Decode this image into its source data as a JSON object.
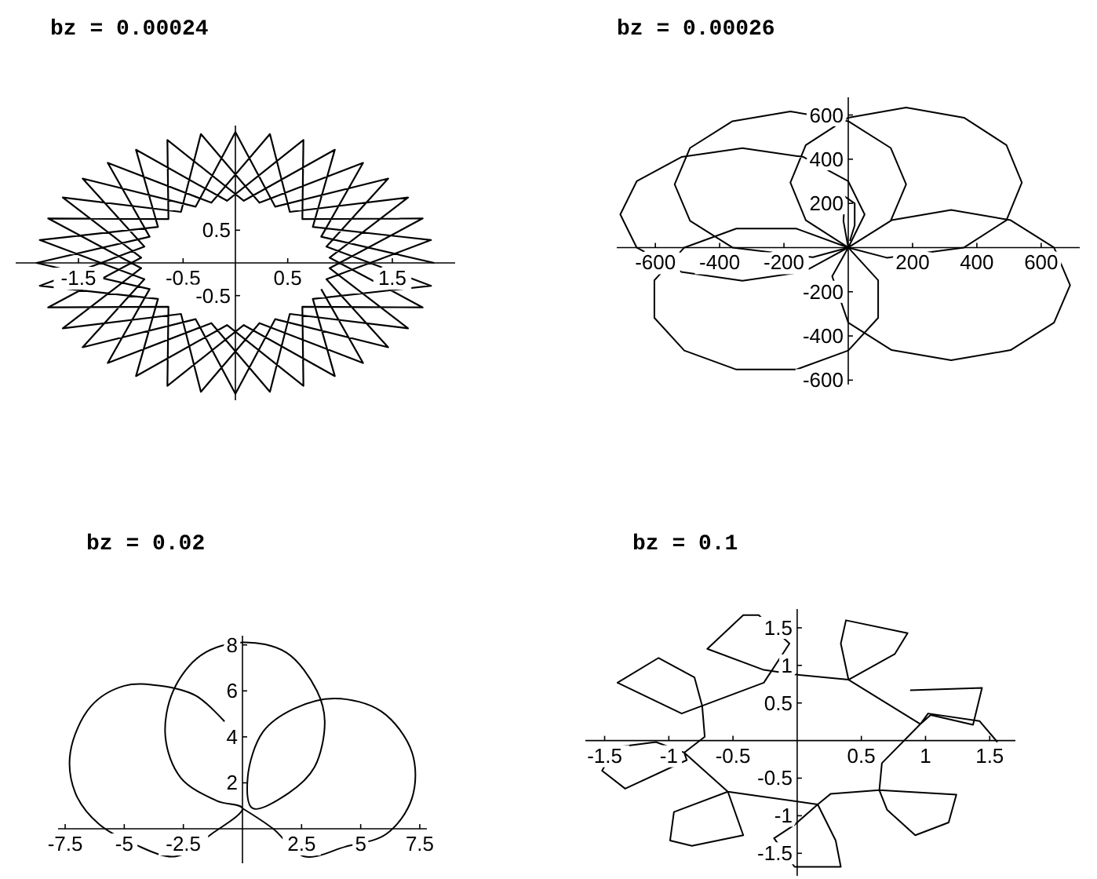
{
  "chart_data": [
    {
      "type": "line",
      "title": "bz = 0.00024",
      "xlim": [
        -2.1,
        2.1
      ],
      "ylim": [
        -2.1,
        2.1
      ],
      "xticks": [
        -1.5,
        -0.5,
        0.5,
        1.5
      ],
      "yticks": [
        -0.5,
        0.5
      ],
      "series": [
        {
          "color": "#000000",
          "x": [
            1.9,
            0.82,
            1.22,
            0.23,
            -0.33,
            -0.52,
            -1.65,
            -0.9,
            -1.79,
            -0.64,
            -0.65,
            0.08,
            0.95,
            0.74,
            1.87,
            0.87,
            1.46,
            0.38,
            0,
            -0.38,
            -1.46,
            -0.87,
            -1.87,
            -0.74,
            -0.95,
            -0.08,
            0.65,
            0.64,
            1.79,
            0.9,
            1.65,
            0.52,
            0.33,
            -0.23,
            -1.22,
            -0.82,
            -1.9,
            -0.82,
            -1.22,
            -0.23,
            0.33,
            0.52,
            1.65,
            0.9,
            1.79,
            0.64,
            0.65,
            -0.08,
            -0.95,
            -0.74,
            -1.87,
            -0.87,
            -1.46,
            -0.38,
            0,
            0.38,
            1.46,
            0.87,
            1.87,
            0.74,
            0.95,
            0.08,
            -0.65,
            -0.64,
            -1.79,
            -0.9,
            -1.65,
            -0.52,
            -0.33,
            0.23,
            1.22,
            0.82
          ],
          "values": [
            0,
            0.4,
            1.53,
            0.92,
            1.97,
            0.78,
            1.0,
            0.08,
            -0.68,
            -0.67,
            -1.88,
            -0.95,
            -1.73,
            -0.55,
            -0.35,
            0.25,
            1.29,
            0.86,
            2,
            0.86,
            1.29,
            0.25,
            -0.35,
            -0.55,
            -1.73,
            -0.95,
            -1.88,
            -0.67,
            -0.68,
            0.08,
            1.0,
            0.78,
            1.97,
            0.92,
            1.53,
            0.4,
            0,
            -0.4,
            -1.53,
            -0.92,
            -1.97,
            -0.78,
            -1.0,
            -0.08,
            0.68,
            0.67,
            1.88,
            0.95,
            1.73,
            0.55,
            0.35,
            -0.25,
            -1.29,
            -0.86,
            -2,
            -0.86,
            -1.29,
            -0.25,
            0.35,
            0.55,
            1.73,
            0.95,
            1.88,
            0.67,
            0.68,
            -0.08,
            -1.0,
            -0.78,
            -1.97,
            -0.92,
            -1.53,
            -0.4
          ]
        }
      ]
    },
    {
      "type": "line",
      "title": "bz = 0.00026",
      "xlim": [
        -720,
        720
      ],
      "ylim": [
        -620,
        680
      ],
      "xticks": [
        -600,
        -400,
        -200,
        200,
        400,
        600
      ],
      "yticks": [
        -600,
        -400,
        -200,
        200,
        400,
        600
      ],
      "series": [
        {
          "color": "#000000",
          "x": [
            0,
            120,
            360,
            492,
            540,
            492,
            360,
            180,
            0,
            -132,
            -180,
            -132,
            0,
            132,
            180,
            132,
            0,
            -180,
            -360,
            -492,
            -540,
            -492,
            -360,
            -110,
            0,
            51,
            0,
            -139,
            -329,
            -519,
            -658,
            -709,
            -658,
            -519,
            -329,
            -139,
            0,
            -162,
            -348,
            -510,
            -603,
            -603,
            -510,
            -348,
            -162,
            0,
            93,
            93,
            0,
            -50,
            0,
            135,
            320,
            505,
            640,
            690,
            640,
            505,
            320,
            135,
            0,
            -15,
            -10,
            20,
            20,
            5
          ],
          "values": [
            0,
            -46,
            0,
            124,
            294,
            464,
            588,
            634,
            588,
            464,
            294,
            124,
            0,
            121,
            286,
            451,
            572,
            616,
            572,
            451,
            286,
            121,
            0,
            -44,
            0,
            150,
            300,
            410,
            450,
            410,
            300,
            150,
            0,
            -110,
            -150,
            -110,
            0,
            86,
            86,
            0,
            -148,
            -318,
            -466,
            -552,
            -552,
            -466,
            -318,
            -148,
            0,
            -130,
            -340,
            -464,
            -510,
            -464,
            -340,
            -170,
            0,
            124,
            170,
            124,
            0,
            120,
            230,
            200,
            100,
            30
          ]
        }
      ]
    },
    {
      "type": "line",
      "title": "bz = 0.02",
      "xlim": [
        -7.8,
        7.8
      ],
      "ylim": [
        -1.5,
        8.4
      ],
      "xticks": [
        -7.5,
        -5,
        -2.5,
        2.5,
        5,
        7.5
      ],
      "yticks": [
        2,
        4,
        6,
        8
      ],
      "series": [
        {
          "color": "#000000",
          "x": [
            -0.76,
            -1.96,
            -3.48,
            -5.0,
            -6.41,
            -7.28,
            -7.07,
            -6.09,
            -4.57,
            -2.83,
            -1.3,
            0,
            -1.09,
            -2.61,
            -3.26,
            -2.93,
            -1.74,
            0,
            1.85,
            3.15,
            3.48,
            3.04,
            1.96,
            0.43,
            0.22,
            0.87,
            2.17,
            3.91,
            5.87,
            7.17,
            7.17,
            6.09,
            4.35,
            2.61,
            1.3,
            0
          ],
          "values": [
            4.67,
            5.78,
            6.22,
            6.22,
            5.33,
            3.33,
            1.56,
            0.22,
            -0.67,
            -1.2,
            -0.22,
            0.89,
            1.22,
            2.22,
            4.0,
            6.0,
            7.56,
            8.11,
            7.67,
            6.0,
            4.67,
            2.67,
            1.56,
            0.89,
            2.22,
            4.22,
            5.22,
            5.67,
            5.11,
            3.33,
            1.33,
            -0.22,
            -0.78,
            -1.2,
            0,
            0.89
          ]
        }
      ]
    },
    {
      "type": "line",
      "title": "bz = 0.1",
      "xlim": [
        -1.65,
        1.7
      ],
      "ylim": [
        -1.8,
        1.75
      ],
      "xticks": [
        -1.5,
        -1,
        -0.5,
        0.5,
        1,
        1.5
      ],
      "yticks": [
        -1.5,
        -1,
        -0.5,
        0.5,
        1,
        1.5
      ],
      "series": [
        {
          "color": "#000000",
          "x": [
            1.56,
            1.42,
            1.02,
            0.96,
            0.66,
            0.64,
            0.7,
            0.92,
            1.18,
            1.24,
            0.64,
            0.26,
            0.16,
            0.3,
            0.34,
            -0.02,
            -0.18,
            -0.02,
            0.16,
            -0.54,
            -0.42,
            -0.82,
            -0.99,
            -0.96,
            -0.54,
            -0.88,
            -0.86,
            -1.34,
            -1.52,
            -1.42,
            -1.1,
            -0.88,
            -0.72,
            -0.74,
            -0.8,
            -1.08,
            -1.4,
            -0.9,
            -0.26,
            -0.06,
            -0.3,
            -0.42,
            -0.7,
            -0.26,
            -0.02,
            0.4,
            0.76,
            0.86,
            0.38,
            0.34,
            0.4,
            0.96,
            1.04,
            1.37,
            1.44,
            0.88
          ],
          "values": [
            -0.02,
            0.26,
            0.36,
            0.22,
            -0.3,
            -0.66,
            -0.92,
            -1.26,
            -1.09,
            -0.72,
            -0.66,
            -0.71,
            -0.85,
            -1.33,
            -1.68,
            -1.68,
            -1.3,
            -1.12,
            -0.85,
            -0.68,
            -1.26,
            -1.4,
            -1.33,
            -0.95,
            -0.68,
            -0.16,
            -0.26,
            -0.64,
            -0.4,
            -0.09,
            -0.02,
            -0.16,
            0.05,
            0.46,
            0.84,
            1.1,
            0.77,
            0.36,
            0.77,
            1.29,
            1.67,
            1.67,
            1.22,
            0.94,
            0.88,
            0.81,
            1.15,
            1.43,
            1.6,
            1.29,
            0.81,
            0.22,
            0.34,
            0.21,
            0.7,
            0.67
          ]
        }
      ]
    }
  ]
}
